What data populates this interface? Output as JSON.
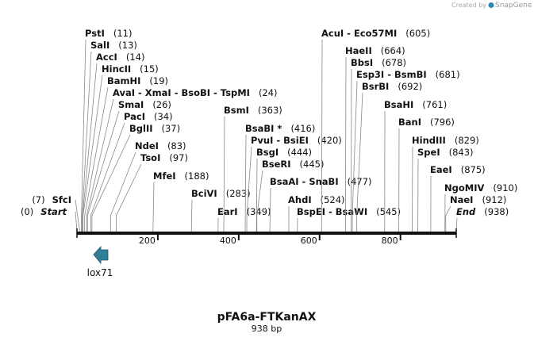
{
  "header": {
    "credit": "Created by",
    "brand": "SnapGene"
  },
  "map": {
    "name": "pFA6a-FTKanAX",
    "length": 938,
    "length_label": "938 bp",
    "scale_ticks": [
      200,
      400,
      600,
      800
    ],
    "sites": [
      {
        "label": "Start",
        "position": 0,
        "position_label": "(0)",
        "side": "left",
        "style": "end"
      },
      {
        "label": "SfcI",
        "position": 7,
        "position_label": "(7)",
        "side": "left"
      },
      {
        "label": "PstI",
        "position": 11,
        "position_label": "(11)"
      },
      {
        "label": "SalI",
        "position": 13,
        "position_label": "(13)"
      },
      {
        "label": "AccI",
        "position": 14,
        "position_label": "(14)"
      },
      {
        "label": "HincII",
        "position": 15,
        "position_label": "(15)"
      },
      {
        "label": "BamHI",
        "position": 19,
        "position_label": "(19)"
      },
      {
        "label": "AvaI - XmaI - BsoBI - TspMI",
        "position": 24,
        "position_label": "(24)"
      },
      {
        "label": "SmaI",
        "position": 26,
        "position_label": "(26)"
      },
      {
        "label": "PacI",
        "position": 34,
        "position_label": "(34)"
      },
      {
        "label": "BglII",
        "position": 37,
        "position_label": "(37)"
      },
      {
        "label": "NdeI",
        "position": 83,
        "position_label": "(83)"
      },
      {
        "label": "TsoI",
        "position": 97,
        "position_label": "(97)"
      },
      {
        "label": "MfeI",
        "position": 188,
        "position_label": "(188)"
      },
      {
        "label": "BciVI",
        "position": 283,
        "position_label": "(283)"
      },
      {
        "label": "EarI",
        "position": 349,
        "position_label": "(349)"
      },
      {
        "label": "BsmI",
        "position": 363,
        "position_label": "(363)"
      },
      {
        "label": "BsaBI *",
        "position": 416,
        "position_label": "(416)"
      },
      {
        "label": "PvuI - BsiEI",
        "position": 420,
        "position_label": "(420)"
      },
      {
        "label": "BsgI",
        "position": 444,
        "position_label": "(444)"
      },
      {
        "label": "BseRI",
        "position": 445,
        "position_label": "(445)"
      },
      {
        "label": "BsaAI - SnaBI",
        "position": 477,
        "position_label": "(477)"
      },
      {
        "label": "AhdI",
        "position": 524,
        "position_label": "(524)"
      },
      {
        "label": "BspEI - BsaWI",
        "position": 545,
        "position_label": "(545)"
      },
      {
        "label": "AcuI - Eco57MI",
        "position": 605,
        "position_label": "(605)"
      },
      {
        "label": "HaeII",
        "position": 664,
        "position_label": "(664)"
      },
      {
        "label": "BbsI",
        "position": 678,
        "position_label": "(678)"
      },
      {
        "label": "Esp3I - BsmBI",
        "position": 681,
        "position_label": "(681)"
      },
      {
        "label": "BsrBI",
        "position": 692,
        "position_label": "(692)"
      },
      {
        "label": "BsaHI",
        "position": 761,
        "position_label": "(761)"
      },
      {
        "label": "BanI",
        "position": 796,
        "position_label": "(796)"
      },
      {
        "label": "HindIII",
        "position": 829,
        "position_label": "(829)"
      },
      {
        "label": "SpeI",
        "position": 843,
        "position_label": "(843)"
      },
      {
        "label": "EaeI",
        "position": 875,
        "position_label": "(875)"
      },
      {
        "label": "NgoMIV",
        "position": 910,
        "position_label": "(910)"
      },
      {
        "label": "NaeI",
        "position": 912,
        "position_label": "(912)"
      },
      {
        "label": "End",
        "position": 938,
        "position_label": "(938)",
        "style": "end"
      }
    ],
    "features": [
      {
        "name": "lox71",
        "color": "#2f8097"
      }
    ]
  }
}
